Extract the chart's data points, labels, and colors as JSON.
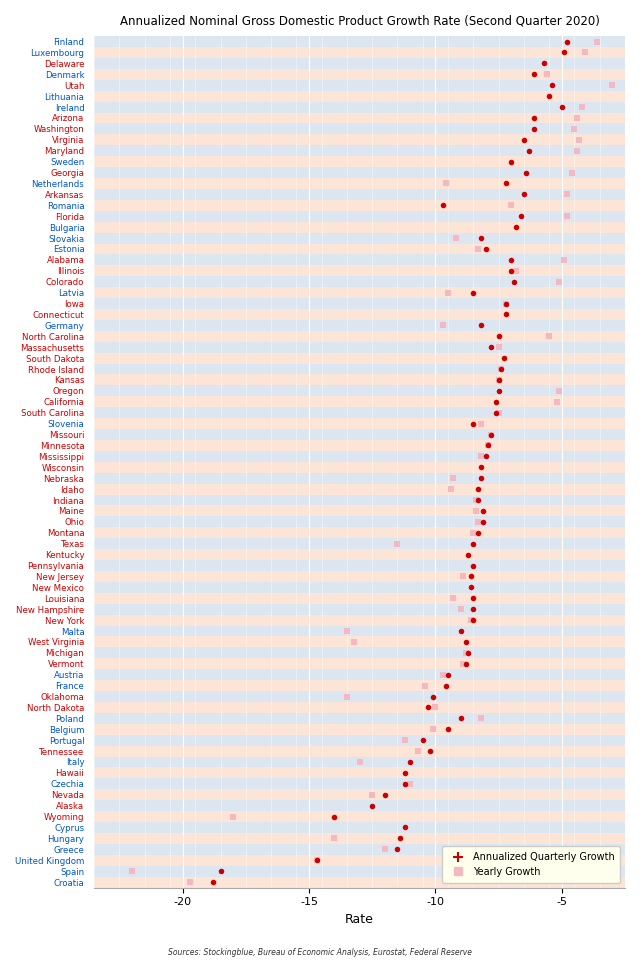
{
  "title": "Annualized Nominal Gross Domestic Product Growth Rate (Second Quarter 2020)",
  "xlabel": "Rate",
  "source": "Sources: Stockingblue, Bureau of Economic Analysis, Eurostat, Federal Reserve",
  "xlim": [
    -23.5,
    -2.5
  ],
  "xticks": [
    -20,
    -15,
    -10,
    -5
  ],
  "bg_color_blue": "#dce6f1",
  "bg_color_pink": "#fce4d6",
  "countries": [
    "Finland",
    "Luxembourg",
    "Delaware",
    "Denmark",
    "Utah",
    "Lithuania",
    "Ireland",
    "Arizona",
    "Washington",
    "Virginia",
    "Maryland",
    "Sweden",
    "Georgia",
    "Netherlands",
    "Arkansas",
    "Romania",
    "Florida",
    "Bulgaria",
    "Slovakia",
    "Estonia",
    "Alabama",
    "Illinois",
    "Colorado",
    "Latvia",
    "Iowa",
    "Connecticut",
    "Germany",
    "North Carolina",
    "Massachusetts",
    "South Dakota",
    "Rhode Island",
    "Kansas",
    "Oregon",
    "California",
    "South Carolina",
    "Slovenia",
    "Missouri",
    "Minnesota",
    "Mississippi",
    "Wisconsin",
    "Nebraska",
    "Idaho",
    "Indiana",
    "Maine",
    "Ohio",
    "Montana",
    "Texas",
    "Kentucky",
    "Pennsylvania",
    "New Jersey",
    "New Mexico",
    "Louisiana",
    "New Hampshire",
    "New York",
    "Malta",
    "West Virginia",
    "Michigan",
    "Vermont",
    "Austria",
    "France",
    "Oklahoma",
    "North Dakota",
    "Poland",
    "Belgium",
    "Portugal",
    "Tennessee",
    "Italy",
    "Hawaii",
    "Czechia",
    "Nevada",
    "Alaska",
    "Wyoming",
    "Cyprus",
    "Hungary",
    "Greece",
    "United Kingdom",
    "Spain",
    "Croatia"
  ],
  "eu_countries": [
    "Finland",
    "Luxembourg",
    "Denmark",
    "Lithuania",
    "Ireland",
    "Sweden",
    "Netherlands",
    "Romania",
    "Bulgaria",
    "Slovakia",
    "Estonia",
    "Latvia",
    "Germany",
    "Slovenia",
    "Austria",
    "France",
    "Poland",
    "Belgium",
    "Portugal",
    "Italy",
    "Czechia",
    "Cyprus",
    "Hungary",
    "Greece",
    "United Kingdom",
    "Spain",
    "Croatia",
    "Malta"
  ],
  "quarterly": [
    -4.8,
    -4.9,
    -5.7,
    -6.1,
    -5.4,
    -5.5,
    -5.0,
    -6.1,
    -6.1,
    -6.5,
    -6.3,
    -7.0,
    -6.4,
    -7.2,
    -6.5,
    -9.7,
    -6.6,
    -6.8,
    -8.2,
    -8.0,
    -7.0,
    -7.0,
    -6.9,
    -8.5,
    -7.2,
    -7.2,
    -8.2,
    -7.5,
    -7.8,
    -7.3,
    -7.4,
    -7.5,
    -7.5,
    -7.6,
    -7.6,
    -8.5,
    -7.8,
    -7.9,
    -8.0,
    -8.2,
    -8.2,
    -8.3,
    -8.3,
    -8.1,
    -8.1,
    -8.3,
    -8.5,
    -8.7,
    -8.5,
    -8.6,
    -8.6,
    -8.5,
    -8.5,
    -8.5,
    -9.0,
    -8.8,
    -8.7,
    -8.8,
    -9.5,
    -9.6,
    -10.1,
    -10.3,
    -9.0,
    -9.5,
    -10.5,
    -10.2,
    -11.0,
    -11.2,
    -11.2,
    -12.0,
    -12.5,
    -14.0,
    -11.2,
    -11.4,
    -11.5,
    -14.7,
    -18.5,
    -18.8
  ],
  "yearly": [
    -3.6,
    -4.1,
    null,
    -5.6,
    -3.0,
    null,
    -4.2,
    -4.4,
    -4.5,
    -4.3,
    -4.4,
    null,
    -4.6,
    -9.6,
    -4.8,
    -7.0,
    -4.8,
    null,
    -9.2,
    -8.3,
    -4.9,
    -6.8,
    -5.1,
    -9.5,
    -7.2,
    null,
    -9.7,
    -5.5,
    -7.5,
    null,
    -7.4,
    -7.5,
    -5.1,
    -5.2,
    -7.5,
    -8.2,
    -7.8,
    -7.9,
    -8.2,
    null,
    -9.3,
    -9.4,
    -8.4,
    -8.4,
    -8.3,
    -8.5,
    -11.5,
    null,
    null,
    -8.9,
    null,
    -9.3,
    -9.0,
    -8.6,
    -13.5,
    -13.2,
    -8.8,
    -8.9,
    -9.7,
    -10.4,
    -13.5,
    -10.0,
    -8.2,
    -10.1,
    -11.2,
    -10.7,
    -13.0,
    null,
    -11.0,
    -12.5,
    null,
    -18.0,
    null,
    -14.0,
    -12.0,
    -14.7,
    -22.0,
    -19.7
  ]
}
